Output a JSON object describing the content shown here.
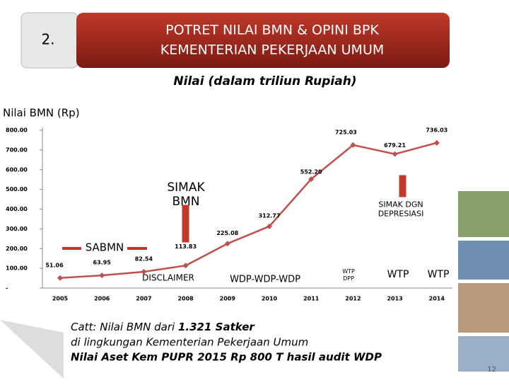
{
  "header": {
    "number": "2.",
    "title_lines": [
      "POTRET NILAI BMN & OPINI BPK",
      "KEMENTERIAN PEKERJAAN UMUM"
    ]
  },
  "chart_data": {
    "type": "line",
    "title": "Nilai (dalam triliun Rupiah)",
    "y_label": "Nilai BMN (Rp)",
    "categories": [
      "2005",
      "2006",
      "2007",
      "2008",
      "2009",
      "2010",
      "2011",
      "2012",
      "2013",
      "2014"
    ],
    "values": [
      51.06,
      63.95,
      82.54,
      113.83,
      225.08,
      312.77,
      552.2,
      725.03,
      679.21,
      736.03
    ],
    "value_labels": [
      "51.06",
      "63.95",
      "82.54",
      "113.83",
      "225.08",
      "312.77",
      "552.20",
      "725.03",
      "679.21",
      "736.03"
    ],
    "color": "#c0504d",
    "ylim": [
      0,
      800
    ],
    "yticks": [
      {
        "value": 0,
        "label": "-"
      },
      {
        "value": 100,
        "label": "100.00"
      },
      {
        "value": 200,
        "label": "200.00"
      },
      {
        "value": 300,
        "label": "300.00"
      },
      {
        "value": 400,
        "label": "400.00"
      },
      {
        "value": 500,
        "label": "500.00"
      },
      {
        "value": 600,
        "label": "600.00"
      },
      {
        "value": 700,
        "label": "700.00"
      },
      {
        "value": 800,
        "label": "800.00"
      }
    ],
    "annotations": [
      "SIMAK BMN",
      "SABMN",
      "SIMAK DGN DEPRESIASI",
      "DISCLAIMER",
      "WDP-WDP-WDP",
      "WTP DPP",
      "WTP",
      "WTP"
    ]
  },
  "footnote": {
    "prefix": "Catt: Nilai BMN dari ",
    "bold": "1.321 Satker",
    "line2": "di lingkungan Kementerian Pekerjaan Umum",
    "line3": "Nilai Aset Kem PUPR 2015 Rp 800 T hasil audit WDP"
  },
  "page_number": "12"
}
